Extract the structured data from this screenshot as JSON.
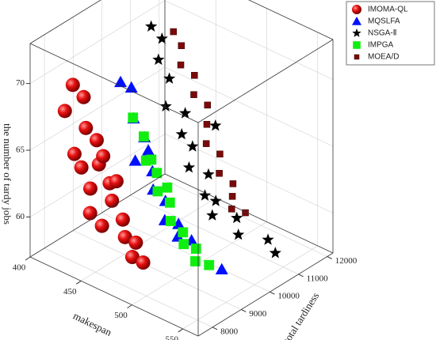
{
  "chart_data": {
    "type": "scatter3d",
    "xlabel": "makespan",
    "ylabel": "total tardiness",
    "zlabel": "the number of tardy jobs",
    "xlim": [
      400,
      565
    ],
    "xticks": [
      400,
      450,
      500,
      550
    ],
    "ylim": [
      7500,
      12200
    ],
    "yticks": [
      8000,
      9000,
      10000,
      11000,
      12000
    ],
    "zlim": [
      57,
      73
    ],
    "zticks": [
      60,
      65,
      70
    ],
    "grid": true,
    "legend": "upper right",
    "series": [
      {
        "name": "IMOMA-QL",
        "marker": "sphere",
        "color": "#e81010",
        "x": [
          425,
          430,
          420,
          435,
          440,
          428,
          445,
          432,
          450,
          438,
          455,
          442,
          460,
          448,
          465,
          470,
          475,
          480,
          452,
          458
        ],
        "y": [
          8100,
          8300,
          8000,
          8200,
          8400,
          8050,
          8300,
          8150,
          8500,
          8250,
          8400,
          8100,
          8600,
          8300,
          8500,
          8700,
          8400,
          8600,
          8200,
          8450
        ],
        "z": [
          70,
          69,
          68,
          67,
          66,
          65,
          64.5,
          64,
          63,
          62.5,
          62,
          61,
          60.5,
          60,
          59.5,
          59,
          58.5,
          58,
          65.5,
          63.5
        ]
      },
      {
        "name": "MQSLFA",
        "marker": "triangle",
        "color": "#0010ff",
        "x": [
          455,
          460,
          465,
          470,
          468,
          475,
          480,
          485,
          490,
          495,
          500,
          505,
          560,
          478
        ],
        "y": [
          8700,
          8900,
          8800,
          9000,
          8750,
          9100,
          8950,
          9200,
          9000,
          9300,
          9100,
          9400,
          8500,
          8850
        ],
        "z": [
          70.5,
          70,
          68,
          66.5,
          65,
          64,
          63,
          62,
          61,
          60.5,
          60,
          59.5,
          60.5,
          66
        ]
      },
      {
        "name": "NSGA-Ⅱ",
        "marker": "star",
        "color": "#000000",
        "x": [
          440,
          445,
          450,
          455,
          460,
          465,
          470,
          475,
          480,
          485,
          490,
          495,
          500,
          510,
          520,
          535,
          545,
          475
        ],
        "y": [
          10300,
          10500,
          10200,
          10400,
          10100,
          10600,
          10300,
          10500,
          10200,
          10700,
          10400,
          10600,
          10300,
          10800,
          10500,
          11000,
          10900,
          11300
        ],
        "z": [
          72,
          71,
          70,
          68.5,
          67,
          66,
          65,
          64,
          63,
          62,
          61,
          60.5,
          60,
          59.5,
          59,
          58.5,
          58,
          64.5
        ]
      },
      {
        "name": "IMPGA",
        "marker": "square",
        "color": "#10ee10",
        "x": [
          470,
          475,
          480,
          485,
          490,
          495,
          500,
          505,
          510,
          515,
          520,
          525,
          488,
          498
        ],
        "y": [
          8600,
          8800,
          8700,
          8900,
          8750,
          9000,
          8850,
          9100,
          8950,
          9200,
          9000,
          9300,
          8600,
          8800
        ],
        "z": [
          68.5,
          67,
          65.5,
          64.5,
          63.5,
          62.5,
          61.5,
          60.5,
          60,
          59.5,
          59,
          58.5,
          66,
          64
        ]
      },
      {
        "name": "MOEA/D",
        "marker": "cube",
        "color": "#7a0a0a",
        "x": [
          445,
          450,
          455,
          460,
          465,
          470,
          475,
          480,
          485,
          490,
          495,
          500,
          505,
          510
        ],
        "y": [
          10900,
          11000,
          10800,
          11100,
          10900,
          11200,
          11000,
          10800,
          11100,
          10900,
          11200,
          11000,
          10800,
          11100
        ],
        "z": [
          71,
          70,
          69,
          68,
          67,
          66,
          65,
          64,
          63,
          62,
          61,
          60.5,
          60,
          59.5
        ]
      }
    ]
  }
}
